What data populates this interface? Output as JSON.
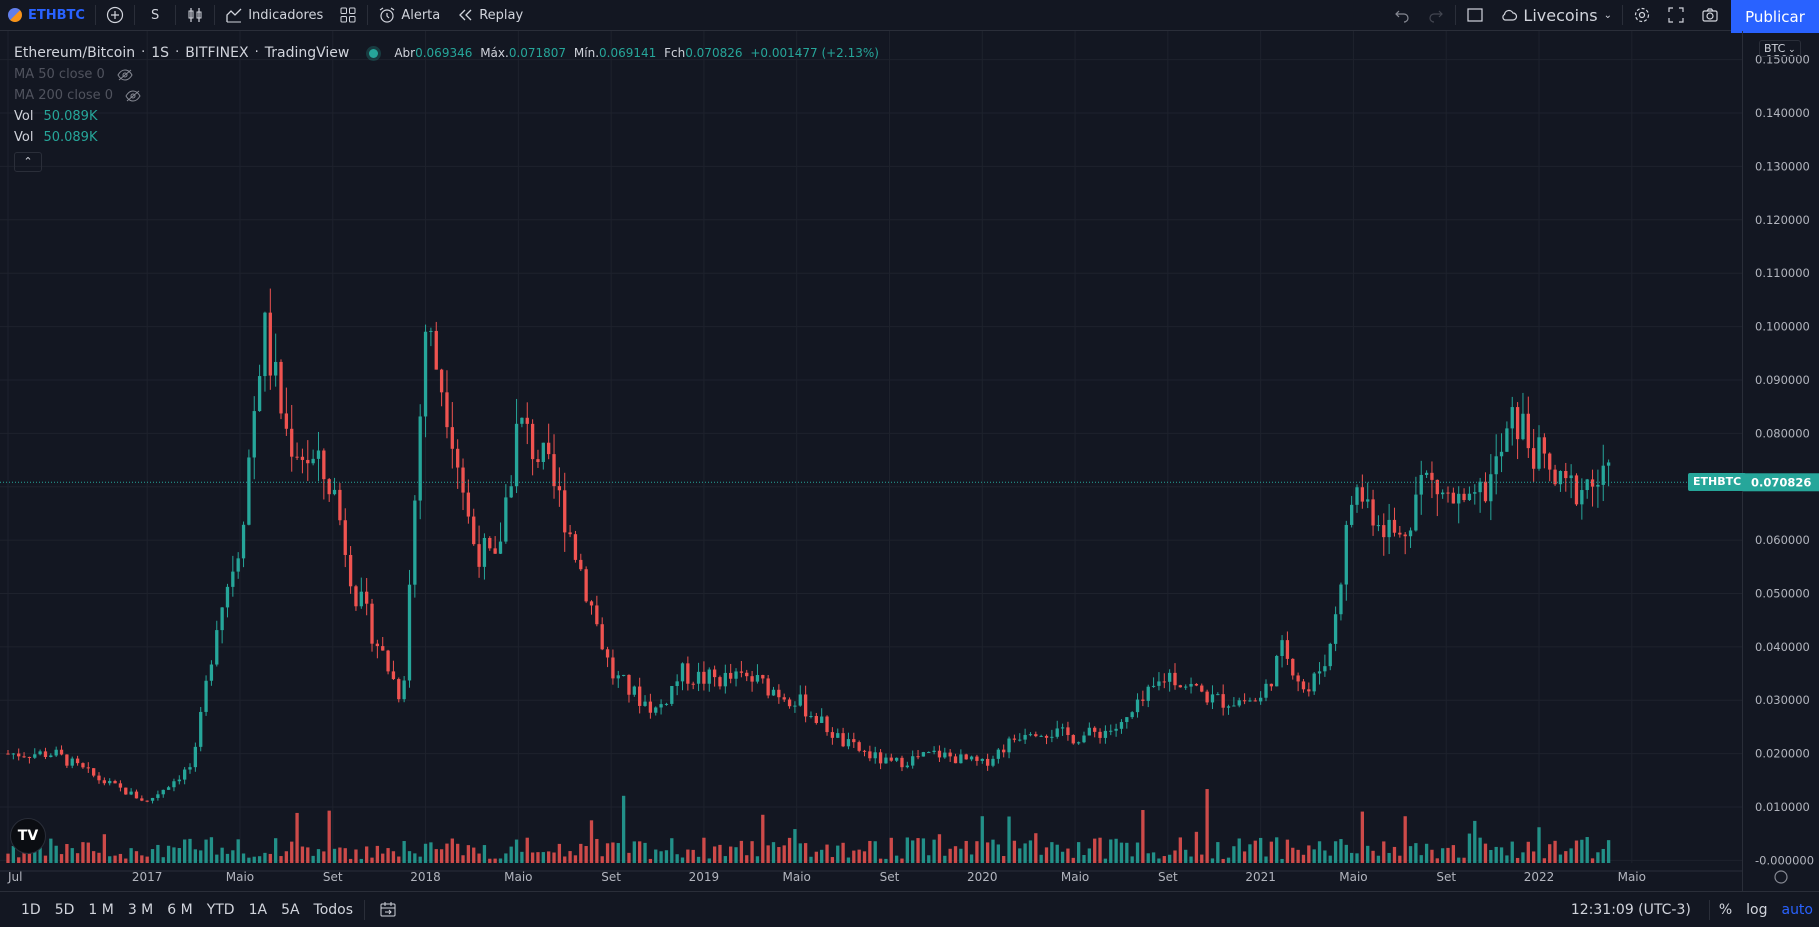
{
  "topbar": {
    "symbol": "ETHBTC",
    "interval": "S",
    "indicators_label": "Indicadores",
    "alert_label": "Alerta",
    "replay_label": "Replay",
    "layout_name": "Livecoins",
    "publish_label": "Publicar"
  },
  "legend": {
    "title": "Ethereum/Bitcoin",
    "interval": "1S",
    "exchange": "BITFINEX",
    "source": "TradingView",
    "open_label": "Abr",
    "open": "0.069346",
    "high_label": "Máx.",
    "high": "0.071807",
    "low_label": "Mín.",
    "low": "0.069141",
    "close_label": "Fch",
    "close": "0.070826",
    "change": "+0.001477 (+2.13%)",
    "ma50": "MA 50 close 0",
    "ma200": "MA 200 close 0",
    "vol_label": "Vol",
    "vol_value": "50.089K",
    "vol2_label": "Vol",
    "vol2_value": "50.089K"
  },
  "price_axis": {
    "currency": "BTC",
    "last_symbol": "ETHBTC",
    "last_price": "0.070826"
  },
  "bottombar": {
    "ranges": [
      "1D",
      "5D",
      "1 M",
      "3 M",
      "6 M",
      "YTD",
      "1A",
      "5A",
      "Todos"
    ],
    "time": "12:31:09 (UTC-3)",
    "percent": "%",
    "log": "log",
    "auto": "auto"
  },
  "colors": {
    "up": "#26a69a",
    "down": "#ef5350",
    "accent": "#2962ff",
    "background": "#131722",
    "grid": "#1e222d"
  },
  "chart_data": {
    "type": "candlestick",
    "y_range": [
      -5e-05,
      0.155
    ],
    "y_ticks": [
      "0.150000",
      "0.140000",
      "0.130000",
      "0.120000",
      "0.110000",
      "0.100000",
      "0.090000",
      "0.080000",
      "0.070000",
      "0.060000",
      "0.050000",
      "0.040000",
      "0.030000",
      "0.020000",
      "0.010000",
      "-0.000000"
    ],
    "x_ticks": [
      "Jul",
      "2017",
      "Maio",
      "Set",
      "2018",
      "Maio",
      "Set",
      "2019",
      "Maio",
      "Set",
      "2020",
      "Maio",
      "Set",
      "2021",
      "Maio",
      "Set",
      "2022",
      "Maio"
    ],
    "x_range": [
      "2016-07",
      "2022-06"
    ],
    "grid": true,
    "close_series_sampled": [
      [
        "2016-07",
        0.02
      ],
      [
        "2016-09",
        0.02
      ],
      [
        "2016-11",
        0.015
      ],
      [
        "2017-01",
        0.011
      ],
      [
        "2017-03",
        0.018
      ],
      [
        "2017-04",
        0.045
      ],
      [
        "2017-05",
        0.06
      ],
      [
        "2017-06",
        0.1
      ],
      [
        "2017-07",
        0.08
      ],
      [
        "2017-08",
        0.075
      ],
      [
        "2017-09",
        0.07
      ],
      [
        "2017-10",
        0.05
      ],
      [
        "2017-11",
        0.04
      ],
      [
        "2017-12",
        0.03
      ],
      [
        "2018-01",
        0.1
      ],
      [
        "2018-02",
        0.085
      ],
      [
        "2018-03",
        0.06
      ],
      [
        "2018-04",
        0.055
      ],
      [
        "2018-05",
        0.082
      ],
      [
        "2018-06",
        0.075
      ],
      [
        "2018-07",
        0.065
      ],
      [
        "2018-08",
        0.05
      ],
      [
        "2018-09",
        0.035
      ],
      [
        "2018-10",
        0.031
      ],
      [
        "2018-11",
        0.028
      ],
      [
        "2018-12",
        0.035
      ],
      [
        "2019-01",
        0.034
      ],
      [
        "2019-03",
        0.034
      ],
      [
        "2019-05",
        0.03
      ],
      [
        "2019-07",
        0.022
      ],
      [
        "2019-09",
        0.018
      ],
      [
        "2019-11",
        0.02
      ],
      [
        "2020-01",
        0.018
      ],
      [
        "2020-03",
        0.025
      ],
      [
        "2020-05",
        0.023
      ],
      [
        "2020-07",
        0.025
      ],
      [
        "2020-09",
        0.035
      ],
      [
        "2020-11",
        0.03
      ],
      [
        "2021-01",
        0.03
      ],
      [
        "2021-02",
        0.04
      ],
      [
        "2021-03",
        0.031
      ],
      [
        "2021-04",
        0.04
      ],
      [
        "2021-05",
        0.07
      ],
      [
        "2021-06",
        0.065
      ],
      [
        "2021-07",
        0.06
      ],
      [
        "2021-08",
        0.072
      ],
      [
        "2021-09",
        0.068
      ],
      [
        "2021-10",
        0.065
      ],
      [
        "2021-11",
        0.072
      ],
      [
        "2021-12",
        0.083
      ],
      [
        "2022-01",
        0.075
      ],
      [
        "2022-02",
        0.069
      ],
      [
        "2022-03",
        0.0708
      ]
    ]
  }
}
